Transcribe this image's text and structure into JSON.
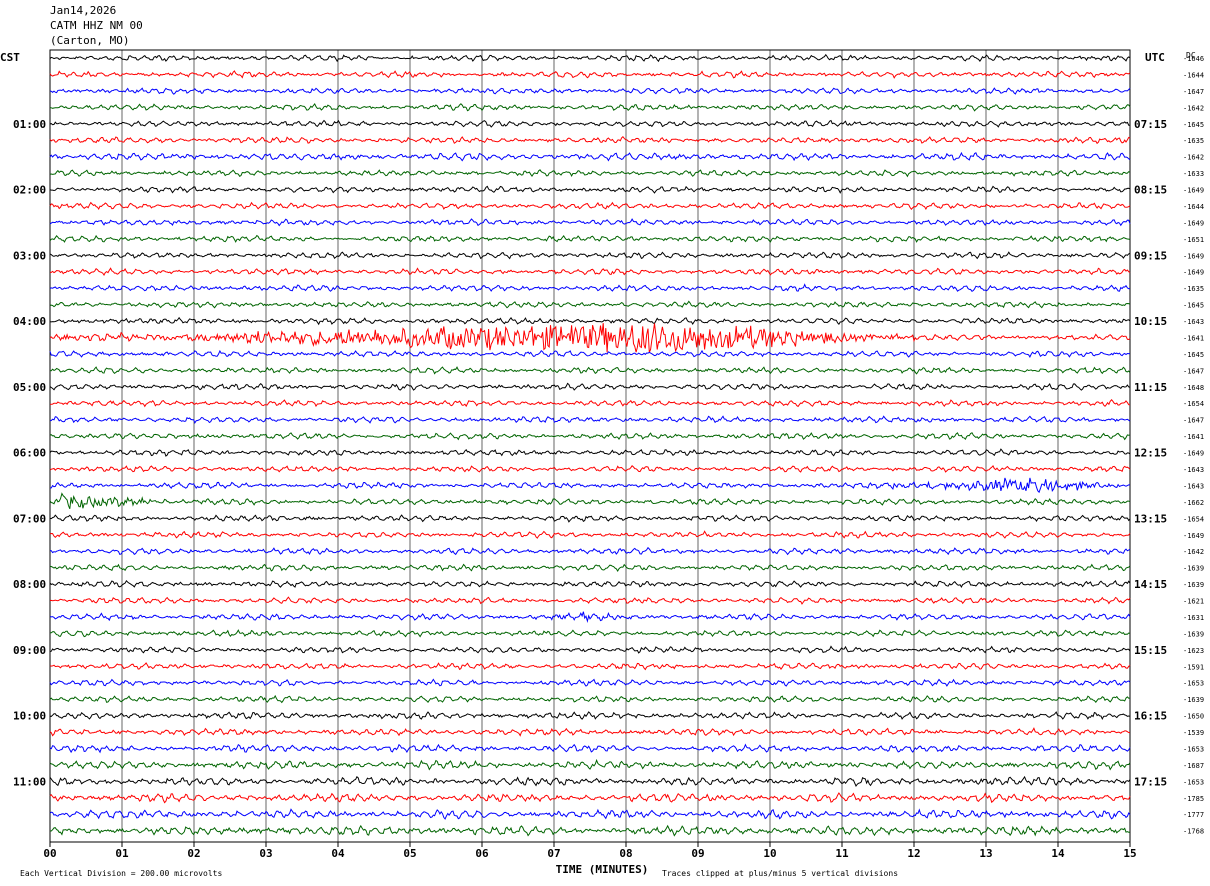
{
  "header": {
    "date": "Jan14,2026",
    "station": "CATM HHZ NM 00",
    "location": "(Carton, MO)"
  },
  "chart_data": {
    "type": "line",
    "title": "",
    "left_timezone": "CST",
    "right_timezone": "UTC",
    "dc_header": "DC",
    "xlabel": "TIME (MINUTES)",
    "xlim": [
      0,
      15
    ],
    "x_ticks": [
      "00",
      "01",
      "02",
      "03",
      "04",
      "05",
      "06",
      "07",
      "08",
      "09",
      "10",
      "11",
      "12",
      "13",
      "14",
      "15"
    ],
    "trace_colors": [
      "#000000",
      "#ff0000",
      "#0000ff",
      "#006400"
    ],
    "trace_minutes": 15,
    "left_hour_labels": [
      "01:00",
      "02:00",
      "03:00",
      "04:00",
      "05:00",
      "06:00",
      "07:00",
      "08:00",
      "09:00",
      "10:00",
      "11:00"
    ],
    "right_hour_labels": [
      "07:15",
      "08:15",
      "09:15",
      "10:15",
      "11:15",
      "12:15",
      "13:15",
      "14:15",
      "15:15",
      "16:15",
      "17:15"
    ],
    "hour_label_row_step": 4,
    "hour_label_first_row": 4,
    "dc_offsets": [
      "-1646",
      "-1644",
      "-1647",
      "-1642",
      "-1645",
      "-1635",
      "-1642",
      "-1633",
      "-1649",
      "-1644",
      "-1649",
      "-1651",
      "-1649",
      "-1649",
      "-1635",
      "-1645",
      "-1643",
      "-1641",
      "-1645",
      "-1647",
      "-1648",
      "-1654",
      "-1647",
      "-1641",
      "-1649",
      "-1643",
      "-1643",
      "-1662",
      "-1654",
      "-1649",
      "-1642",
      "-1639",
      "-1639",
      "-1621",
      "-1631",
      "-1639",
      "-1623",
      "-1591",
      "-1653",
      "-1639",
      "-1650",
      "-1539",
      "-1653",
      "-1687",
      "-1653",
      "-1785",
      "-1777",
      "-1768"
    ],
    "row_amplitude_levels": [
      1,
      1,
      1,
      1,
      1,
      1,
      1.2,
      1,
      1,
      1,
      1,
      1,
      1,
      1,
      1,
      1,
      1,
      1,
      1,
      1,
      1,
      1,
      1,
      1,
      1,
      1,
      1,
      1,
      1,
      1,
      1,
      1,
      1,
      1,
      1,
      1,
      1,
      1,
      1,
      1,
      1.1,
      1.1,
      1.2,
      1.3,
      1.4,
      1.4,
      1.4,
      1.5
    ],
    "events": [
      {
        "row": 17,
        "start_min": 0,
        "peak_min": 8.5,
        "end_min": 12,
        "amplitude": 4.5
      },
      {
        "row": 26,
        "start_min": 11.3,
        "peak_min": 13.5,
        "end_min": 15,
        "amplitude": 2.0
      },
      {
        "row": 27,
        "start_min": 0,
        "peak_min": 0.1,
        "end_min": 2.5,
        "amplitude": 1.8
      },
      {
        "row": 34,
        "start_min": 6.2,
        "peak_min": 7.5,
        "end_min": 8.5,
        "amplitude": 0.8
      }
    ],
    "footer": {
      "scale_note": "Each Vertical Division =  200.00 microvolts",
      "clip_note": "Traces clipped at plus/minus 5 vertical divisions"
    }
  }
}
